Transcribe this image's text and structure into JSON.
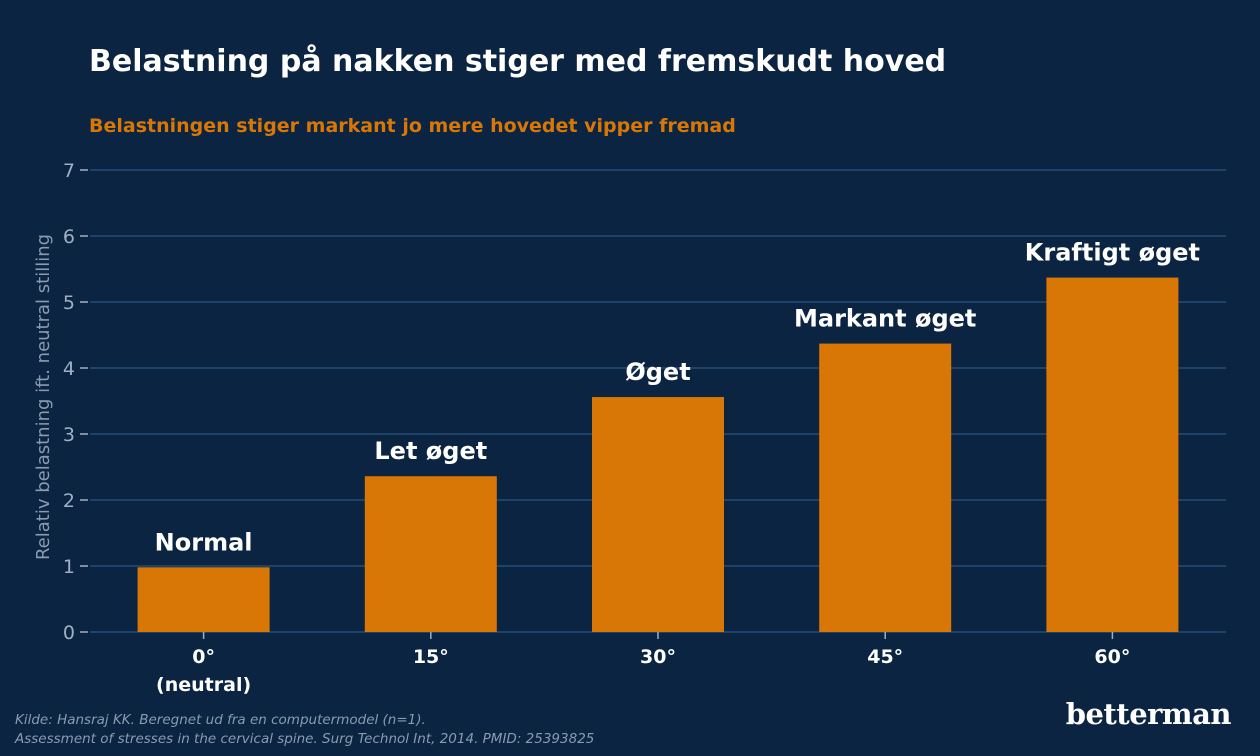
{
  "title": "Belastning på nakken stiger med fremskudt hoved",
  "subtitle": "Belastningen stiger markant jo mere hovedet vipper fremad",
  "source_line1": "Kilde: Hansraj KK. Beregnet ud fra en computermodel (n=1).",
  "source_line2": "Assessment of stresses in the cervical spine. Surg Technol Int, 2014. PMID: 25393825",
  "brand": "betterman",
  "colors": {
    "background": "#0b2441",
    "bar": "#d97706",
    "grid": "#1f4268",
    "tick_text": "#9fb0c4",
    "label_text": "#ffffff",
    "accent": "#d97706"
  },
  "chart_data": {
    "type": "bar",
    "categories": [
      "0°\n(neutral)",
      "15°",
      "30°",
      "45°",
      "60°"
    ],
    "values": [
      0.98,
      2.36,
      3.56,
      4.37,
      5.37
    ],
    "bar_labels": [
      "Normal",
      "Let øget",
      "Øget",
      "Markant øget",
      "Kraftigt øget"
    ],
    "title": "Belastning på nakken stiger med fremskudt hoved",
    "subtitle": "Belastningen stiger markant jo mere hovedet vipper fremad",
    "xlabel": "",
    "ylabel": "Relativ belastning ift. neutral stilling",
    "ylim": [
      0,
      7
    ],
    "yticks": [
      0,
      1,
      2,
      3,
      4,
      5,
      6,
      7
    ],
    "grid": true,
    "legend": "none"
  }
}
